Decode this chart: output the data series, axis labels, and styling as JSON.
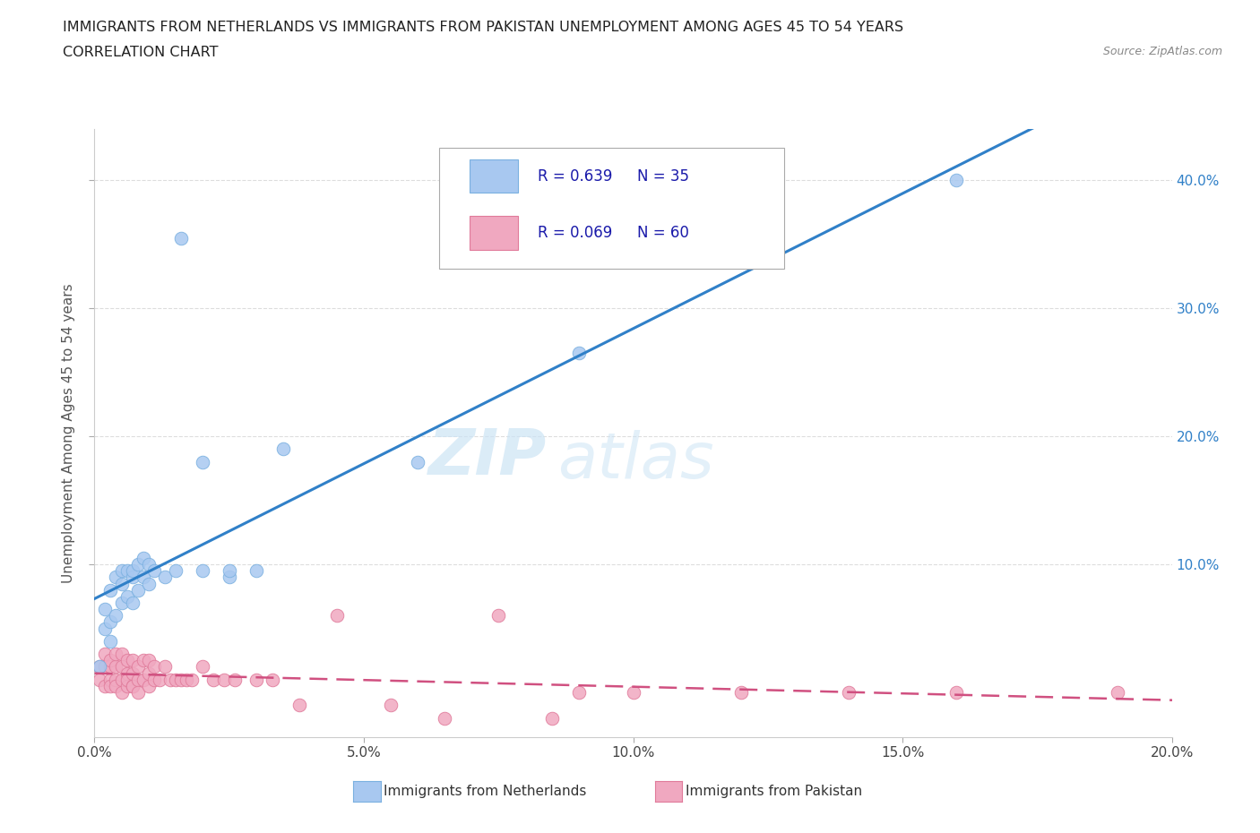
{
  "title_line1": "IMMIGRANTS FROM NETHERLANDS VS IMMIGRANTS FROM PAKISTAN UNEMPLOYMENT AMONG AGES 45 TO 54 YEARS",
  "title_line2": "CORRELATION CHART",
  "source_text": "Source: ZipAtlas.com",
  "ylabel": "Unemployment Among Ages 45 to 54 years",
  "xlim": [
    0.0,
    0.2
  ],
  "ylim": [
    -0.035,
    0.44
  ],
  "xtick_labels": [
    "0.0%",
    "5.0%",
    "10.0%",
    "15.0%",
    "20.0%"
  ],
  "xtick_vals": [
    0.0,
    0.05,
    0.1,
    0.15,
    0.2
  ],
  "ytick_labels": [
    "10.0%",
    "20.0%",
    "30.0%",
    "40.0%"
  ],
  "ytick_vals": [
    0.1,
    0.2,
    0.3,
    0.4
  ],
  "netherlands_color": "#a8c8f0",
  "pakistan_color": "#f0a8c0",
  "netherlands_edge": "#7ab0e0",
  "pakistan_edge": "#e07a9a",
  "trendline_netherlands_color": "#3080c8",
  "trendline_pakistan_color": "#d05080",
  "watermark_zip": "ZIP",
  "watermark_atlas": "atlas",
  "background_color": "#ffffff",
  "grid_color": "#dddddd",
  "netherlands_x": [
    0.001,
    0.002,
    0.002,
    0.003,
    0.003,
    0.003,
    0.004,
    0.004,
    0.005,
    0.005,
    0.005,
    0.006,
    0.006,
    0.007,
    0.007,
    0.007,
    0.008,
    0.008,
    0.009,
    0.009,
    0.01,
    0.01,
    0.011,
    0.013,
    0.015,
    0.016,
    0.02,
    0.02,
    0.025,
    0.025,
    0.03,
    0.035,
    0.06,
    0.09,
    0.16
  ],
  "netherlands_y": [
    0.02,
    0.05,
    0.065,
    0.04,
    0.055,
    0.08,
    0.06,
    0.09,
    0.07,
    0.085,
    0.095,
    0.075,
    0.095,
    0.07,
    0.09,
    0.095,
    0.08,
    0.1,
    0.09,
    0.105,
    0.085,
    0.1,
    0.095,
    0.09,
    0.095,
    0.355,
    0.095,
    0.18,
    0.09,
    0.095,
    0.095,
    0.19,
    0.18,
    0.265,
    0.4
  ],
  "pakistan_x": [
    0.001,
    0.001,
    0.002,
    0.002,
    0.002,
    0.003,
    0.003,
    0.003,
    0.003,
    0.004,
    0.004,
    0.004,
    0.004,
    0.005,
    0.005,
    0.005,
    0.005,
    0.006,
    0.006,
    0.006,
    0.006,
    0.007,
    0.007,
    0.007,
    0.007,
    0.008,
    0.008,
    0.008,
    0.009,
    0.009,
    0.01,
    0.01,
    0.01,
    0.011,
    0.011,
    0.012,
    0.013,
    0.014,
    0.015,
    0.016,
    0.017,
    0.018,
    0.02,
    0.022,
    0.024,
    0.026,
    0.03,
    0.033,
    0.038,
    0.045,
    0.055,
    0.065,
    0.075,
    0.085,
    0.09,
    0.1,
    0.12,
    0.14,
    0.16,
    0.19
  ],
  "pakistan_y": [
    0.02,
    0.01,
    0.005,
    0.02,
    0.03,
    0.01,
    0.02,
    0.005,
    0.025,
    0.01,
    0.005,
    0.02,
    0.03,
    0.01,
    0.02,
    0.0,
    0.03,
    0.005,
    0.015,
    0.025,
    0.01,
    0.005,
    0.015,
    0.025,
    0.005,
    0.01,
    0.02,
    0.0,
    0.01,
    0.025,
    0.005,
    0.015,
    0.025,
    0.01,
    0.02,
    0.01,
    0.02,
    0.01,
    0.01,
    0.01,
    0.01,
    0.01,
    0.02,
    0.01,
    0.01,
    0.01,
    0.01,
    0.01,
    -0.01,
    0.06,
    -0.01,
    -0.02,
    0.06,
    -0.02,
    0.0,
    0.0,
    0.0,
    0.0,
    0.0,
    0.0
  ],
  "legend_nl_r": "R = 0.639",
  "legend_nl_n": "N = 35",
  "legend_pk_r": "R = 0.069",
  "legend_pk_n": "N = 60",
  "label_netherlands": "Immigrants from Netherlands",
  "label_pakistan": "Immigrants from Pakistan"
}
